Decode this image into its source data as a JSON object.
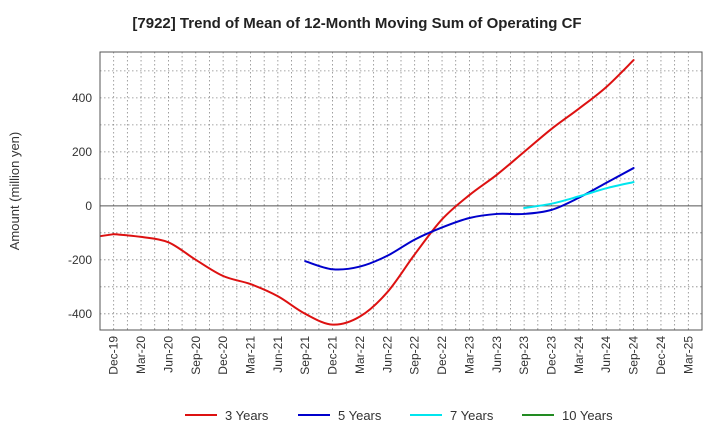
{
  "chart_data": {
    "type": "line",
    "title": "[7922]  Trend of Mean of 12-Month Moving Sum of Operating CF",
    "xlabel": "",
    "ylabel": "Amount (million yen)",
    "categories": [
      "Dec-19",
      "Mar-20",
      "Jun-20",
      "Sep-20",
      "Dec-20",
      "Mar-21",
      "Jun-21",
      "Sep-21",
      "Dec-21",
      "Mar-22",
      "Jun-22",
      "Sep-22",
      "Dec-22",
      "Mar-23",
      "Jun-23",
      "Sep-23",
      "Dec-23",
      "Mar-24",
      "Jun-24",
      "Sep-24",
      "Dec-24",
      "Mar-25"
    ],
    "yticks": [
      "-400",
      "-200",
      "0",
      "200",
      "400"
    ],
    "ylim": [
      -460,
      570
    ],
    "grid": true,
    "legend_position": "bottom",
    "series": [
      {
        "name": "3 Years",
        "color": "#dd1111",
        "values": [
          -105,
          -115,
          -135,
          -200,
          -260,
          -290,
          -335,
          -400,
          -440,
          -410,
          -320,
          -180,
          -50,
          40,
          115,
          200,
          285,
          360,
          440,
          540,
          null,
          null
        ]
      },
      {
        "name": "5 Years",
        "color": "#0000cc",
        "values": [
          null,
          null,
          null,
          null,
          null,
          null,
          null,
          -205,
          -235,
          -225,
          -185,
          -125,
          -80,
          -45,
          -30,
          -30,
          -15,
          30,
          85,
          140,
          null,
          null
        ]
      },
      {
        "name": "7 Years",
        "color": "#00e5ee",
        "values": [
          null,
          null,
          null,
          null,
          null,
          null,
          null,
          null,
          null,
          null,
          null,
          null,
          null,
          null,
          null,
          -8,
          8,
          35,
          65,
          88,
          null,
          null
        ]
      },
      {
        "name": "10 Years",
        "color": "#228b22",
        "values": [
          null,
          null,
          null,
          null,
          null,
          null,
          null,
          null,
          null,
          null,
          null,
          null,
          null,
          null,
          null,
          null,
          null,
          null,
          null,
          null,
          null,
          null
        ]
      }
    ]
  }
}
